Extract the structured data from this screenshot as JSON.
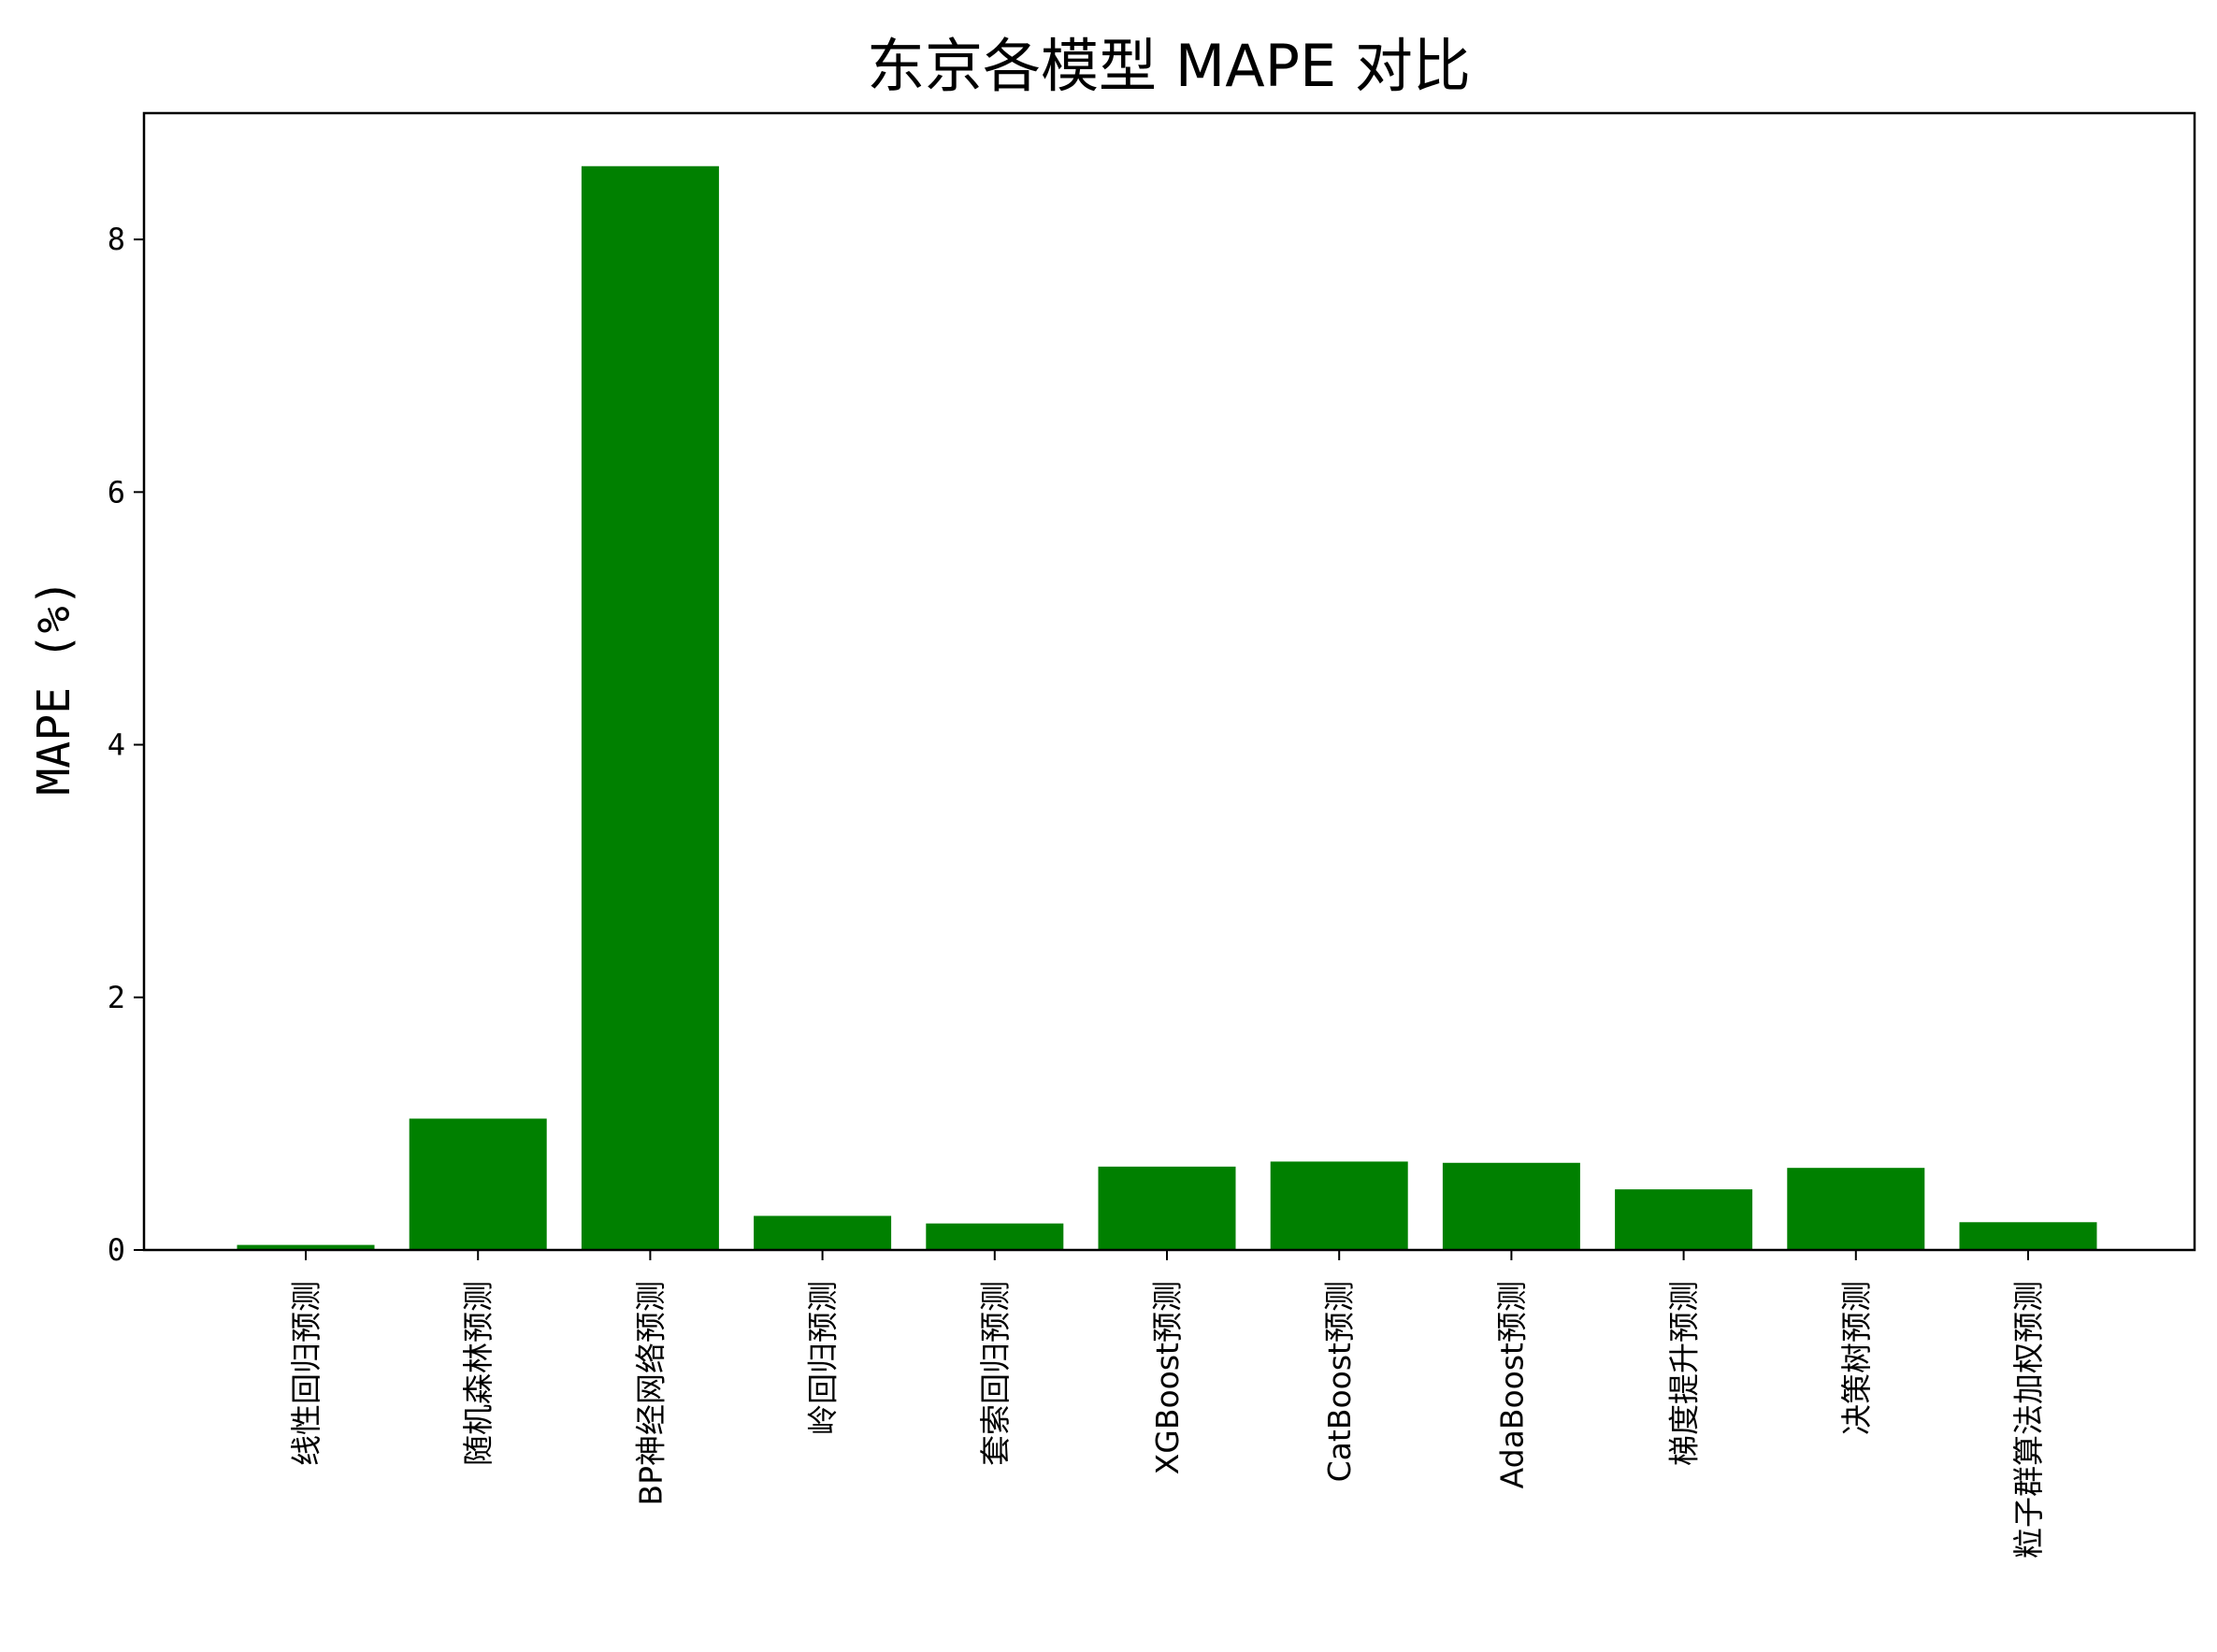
{
  "chart_data": {
    "type": "bar",
    "title": "东京各模型 MAPE 对比",
    "xlabel": "",
    "ylabel": "MAPE (%)",
    "ylim": [
      0,
      9
    ],
    "yticks": [
      0,
      2,
      4,
      6,
      8
    ],
    "categories": [
      "线性回归预测",
      "随机森林预测",
      "BP神经网络预测",
      "岭回归预测",
      "套索回归预测",
      "XGBoost预测",
      "CatBoost预测",
      "AdaBoost预测",
      "梯度提升预测",
      "决策树预测",
      "粒子群算法加权预测"
    ],
    "values": [
      0.04,
      1.04,
      8.58,
      0.27,
      0.21,
      0.66,
      0.7,
      0.69,
      0.48,
      0.65,
      0.22
    ],
    "bar_color": "#008000",
    "grid": false,
    "legend": "none"
  }
}
